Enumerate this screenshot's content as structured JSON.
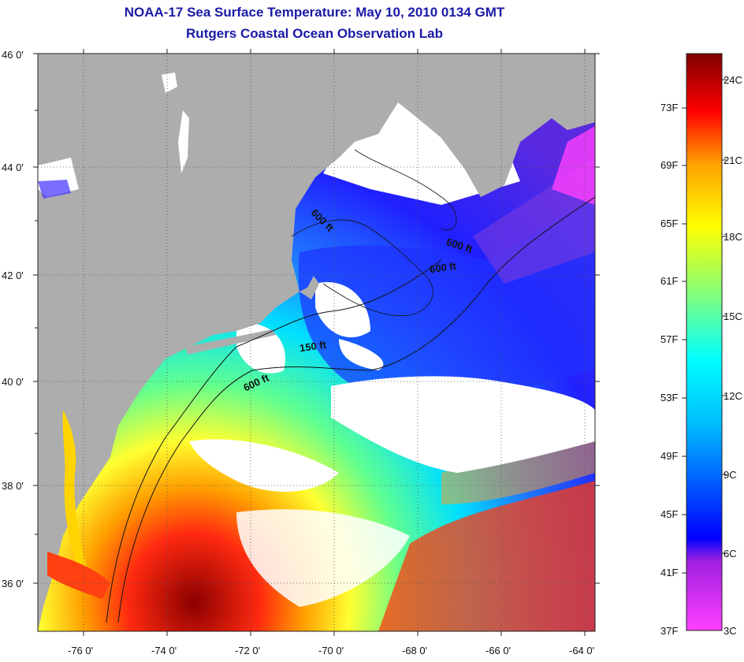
{
  "header": {
    "title": "NOAA-17 Sea Surface Temperature:  May 10, 2010 0134 GMT",
    "subtitle": "Rutgers Coastal Ocean Observation Lab"
  },
  "map": {
    "lat_ticks": [
      "46 0'",
      "44 0'",
      "42 0'",
      "40 0'",
      "38 0'",
      "36 0'"
    ],
    "lon_ticks": [
      "-76 0'",
      "-74 0'",
      "-72 0'",
      "-70 0'",
      "-68 0'",
      "-66 0'",
      "-64 0'"
    ],
    "contour_labels": [
      "600 ft",
      "600 ft",
      "600 ft",
      "150 ft",
      "600 ft"
    ],
    "colors": {
      "land": "#adadad",
      "clouds": "#ffffff",
      "gridlines": "#555555"
    }
  },
  "colorbar": {
    "fahrenheit_labels": [
      "73F",
      "69F",
      "65F",
      "61F",
      "57F",
      "53F",
      "49F",
      "45F",
      "41F",
      "37F"
    ],
    "celsius_labels": [
      "24C",
      "21C",
      "18C",
      "15C",
      "12C",
      "9C",
      "6C",
      "3C"
    ],
    "colors": [
      "#ff40ff",
      "#0000ff",
      "#00bfff",
      "#00ffff",
      "#7fff7f",
      "#ffff00",
      "#ff9f00",
      "#ff0000",
      "#7f0000"
    ]
  }
}
